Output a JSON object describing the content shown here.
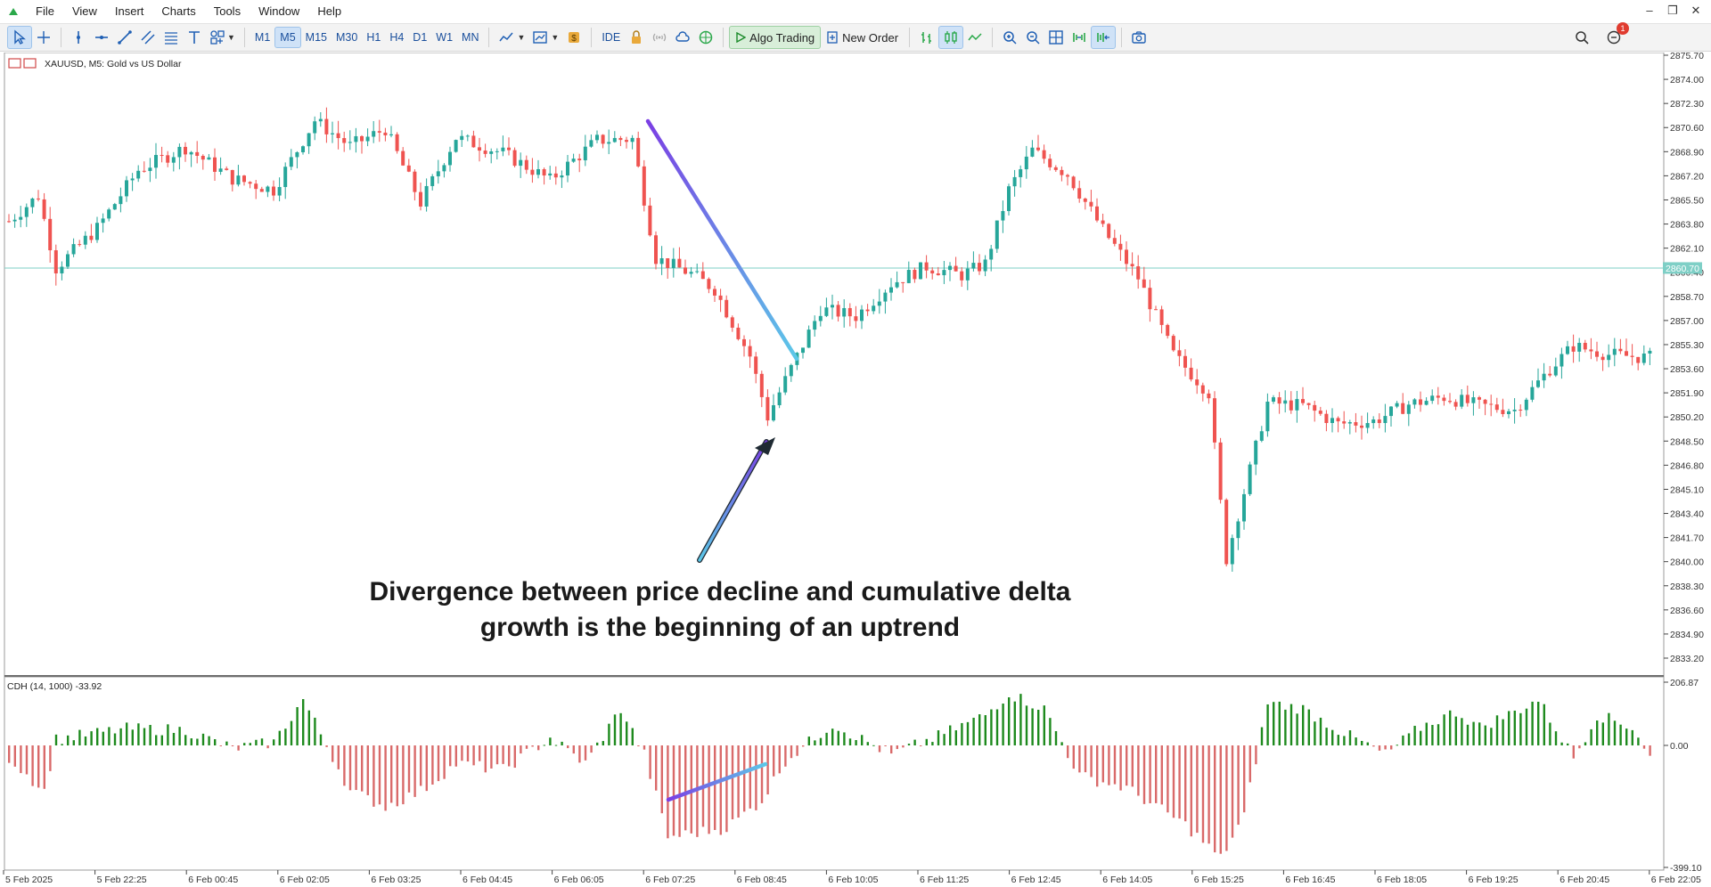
{
  "menu": {
    "items": [
      "File",
      "View",
      "Insert",
      "Charts",
      "Tools",
      "Window",
      "Help"
    ]
  },
  "toolbar": {
    "timeframes": [
      "M1",
      "M5",
      "M15",
      "M30",
      "H1",
      "H4",
      "D1",
      "W1",
      "MN"
    ],
    "active_timeframe": "M5",
    "ide_label": "IDE",
    "algo_trading_label": "Algo Trading",
    "new_order_label": "New Order",
    "notification_count": "1"
  },
  "chart": {
    "symbol_info": "XAUUSD, M5:  Gold vs US Dollar",
    "current_price_label": "2860.70",
    "price_ticks": [
      "2875.70",
      "2874.00",
      "2872.30",
      "2870.60",
      "2868.90",
      "2867.20",
      "2865.50",
      "2863.80",
      "2862.10",
      "2860.40",
      "2858.70",
      "2857.00",
      "2855.30",
      "2853.60",
      "2851.90",
      "2850.20",
      "2848.50",
      "2846.80",
      "2845.10",
      "2843.40",
      "2841.70",
      "2840.00",
      "2838.30",
      "2836.60",
      "2834.90",
      "2833.20"
    ],
    "time_ticks": [
      "5 Feb 2025",
      "5 Feb 22:25",
      "6 Feb 00:45",
      "6 Feb 02:05",
      "6 Feb 03:25",
      "6 Feb 04:45",
      "6 Feb 06:05",
      "6 Feb 07:25",
      "6 Feb 08:45",
      "6 Feb 10:05",
      "6 Feb 11:25",
      "6 Feb 12:45",
      "6 Feb 14:05",
      "6 Feb 15:25",
      "6 Feb 16:45",
      "6 Feb 18:05",
      "6 Feb 19:25",
      "6 Feb 20:45",
      "6 Feb 22:05"
    ],
    "colors": {
      "bull": "#26a69a",
      "bear": "#ef5350",
      "hist_up": "#1e8a1e",
      "hist_down": "#d96a6a",
      "price_line": "#7ecfc6",
      "grad_start": "#7b3fe4",
      "grad_end": "#5cc8e8"
    }
  },
  "indicator": {
    "label": "CDH (14, 1000) -33.92",
    "ticks": [
      "206.87",
      "0.00",
      "-399.10"
    ]
  },
  "annotation": {
    "line1": "Divergence between price decline and cumulative delta",
    "line2": "growth is the beginning of an uptrend"
  },
  "chart_data": {
    "type": "candlestick",
    "symbol": "XAUUSD",
    "timeframe": "M5",
    "price_ylim": [
      2833.2,
      2875.7
    ],
    "indicator_name": "CDH (14, 1000)",
    "indicator_ylim": [
      -399.1,
      206.87
    ],
    "last_indicator_value": -33.92,
    "x_start": "5 Feb 2025",
    "x_end": "6 Feb 22:05",
    "close_path": [
      {
        "i": 0,
        "close": 2864.0
      },
      {
        "i": 5,
        "close": 2865.8
      },
      {
        "i": 8,
        "close": 2860.7
      },
      {
        "i": 15,
        "close": 2863.5
      },
      {
        "i": 22,
        "close": 2867.6
      },
      {
        "i": 30,
        "close": 2869.2
      },
      {
        "i": 38,
        "close": 2867.0
      },
      {
        "i": 45,
        "close": 2866.2
      },
      {
        "i": 52,
        "close": 2871.1
      },
      {
        "i": 58,
        "close": 2869.3
      },
      {
        "i": 64,
        "close": 2870.5
      },
      {
        "i": 70,
        "close": 2865.3
      },
      {
        "i": 76,
        "close": 2869.9
      },
      {
        "i": 84,
        "close": 2868.8
      },
      {
        "i": 92,
        "close": 2866.9
      },
      {
        "i": 100,
        "close": 2869.7
      },
      {
        "i": 106,
        "close": 2869.8
      },
      {
        "i": 110,
        "close": 2861.4
      },
      {
        "i": 116,
        "close": 2860.3
      },
      {
        "i": 120,
        "close": 2859.2
      },
      {
        "i": 126,
        "close": 2854.5
      },
      {
        "i": 129,
        "close": 2850.2
      },
      {
        "i": 132,
        "close": 2852.8
      },
      {
        "i": 138,
        "close": 2857.8
      },
      {
        "i": 144,
        "close": 2857.3
      },
      {
        "i": 150,
        "close": 2859.6
      },
      {
        "i": 156,
        "close": 2860.8
      },
      {
        "i": 162,
        "close": 2860.2
      },
      {
        "i": 166,
        "close": 2861.0
      },
      {
        "i": 170,
        "close": 2866.2
      },
      {
        "i": 174,
        "close": 2869.0
      },
      {
        "i": 180,
        "close": 2867.3
      },
      {
        "i": 186,
        "close": 2863.4
      },
      {
        "i": 192,
        "close": 2860.0
      },
      {
        "i": 198,
        "close": 2854.6
      },
      {
        "i": 204,
        "close": 2851.9
      },
      {
        "i": 207,
        "close": 2840.2
      },
      {
        "i": 210,
        "close": 2844.9
      },
      {
        "i": 214,
        "close": 2851.2
      },
      {
        "i": 220,
        "close": 2851.0
      },
      {
        "i": 226,
        "close": 2849.7
      },
      {
        "i": 232,
        "close": 2849.9
      },
      {
        "i": 238,
        "close": 2851.1
      },
      {
        "i": 244,
        "close": 2851.6
      },
      {
        "i": 250,
        "close": 2851.0
      },
      {
        "i": 256,
        "close": 2850.7
      },
      {
        "i": 262,
        "close": 2853.6
      },
      {
        "i": 266,
        "close": 2855.2
      },
      {
        "i": 272,
        "close": 2854.6
      },
      {
        "i": 278,
        "close": 2854.4
      }
    ],
    "cdh_path": [
      {
        "i": 0,
        "v": -40
      },
      {
        "i": 6,
        "v": -150
      },
      {
        "i": 8,
        "v": 20
      },
      {
        "i": 20,
        "v": 55
      },
      {
        "i": 30,
        "v": 50
      },
      {
        "i": 38,
        "v": -10
      },
      {
        "i": 45,
        "v": 10
      },
      {
        "i": 50,
        "v": 150
      },
      {
        "i": 58,
        "v": -150
      },
      {
        "i": 64,
        "v": -200
      },
      {
        "i": 70,
        "v": -150
      },
      {
        "i": 76,
        "v": -60
      },
      {
        "i": 84,
        "v": -80
      },
      {
        "i": 92,
        "v": 25
      },
      {
        "i": 98,
        "v": -60
      },
      {
        "i": 104,
        "v": 120
      },
      {
        "i": 108,
        "v": -30
      },
      {
        "i": 112,
        "v": -300
      },
      {
        "i": 122,
        "v": -270
      },
      {
        "i": 128,
        "v": -180
      },
      {
        "i": 132,
        "v": -50
      },
      {
        "i": 140,
        "v": 70
      },
      {
        "i": 150,
        "v": -30
      },
      {
        "i": 158,
        "v": 30
      },
      {
        "i": 166,
        "v": 100
      },
      {
        "i": 170,
        "v": 170
      },
      {
        "i": 176,
        "v": 120
      },
      {
        "i": 182,
        "v": -100
      },
      {
        "i": 190,
        "v": -140
      },
      {
        "i": 200,
        "v": -260
      },
      {
        "i": 206,
        "v": -370
      },
      {
        "i": 210,
        "v": -230
      },
      {
        "i": 214,
        "v": 140
      },
      {
        "i": 220,
        "v": 120
      },
      {
        "i": 226,
        "v": 50
      },
      {
        "i": 234,
        "v": -30
      },
      {
        "i": 240,
        "v": 60
      },
      {
        "i": 246,
        "v": 110
      },
      {
        "i": 250,
        "v": 60
      },
      {
        "i": 256,
        "v": 110
      },
      {
        "i": 260,
        "v": 150
      },
      {
        "i": 266,
        "v": -40
      },
      {
        "i": 270,
        "v": 100
      },
      {
        "i": 276,
        "v": 60
      },
      {
        "i": 279,
        "v": -34
      }
    ]
  }
}
